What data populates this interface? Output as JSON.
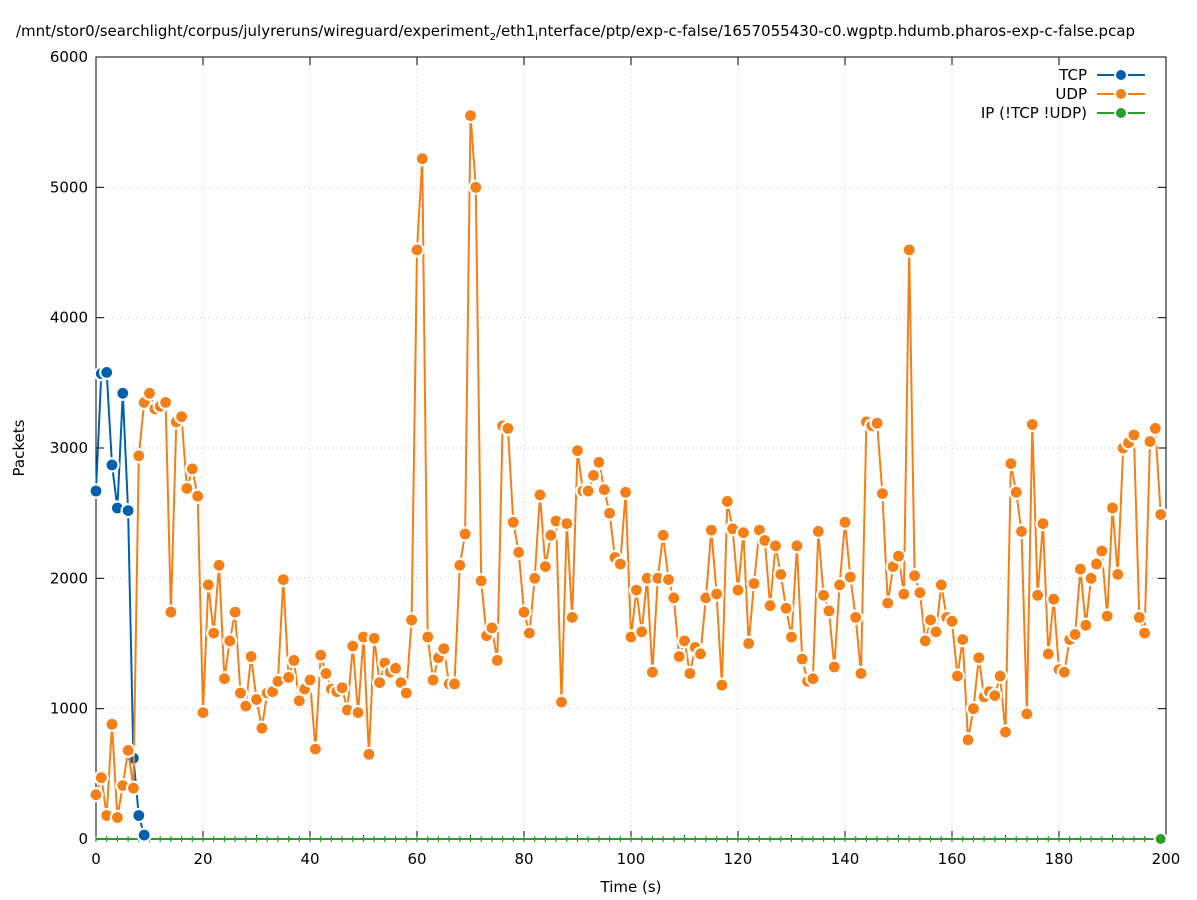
{
  "chart_data": {
    "type": "line",
    "title": "/mnt/stor0/searchlight/corpus/julyreruns/wireguard/experiment",
    "title_sub1": "2",
    "title_mid": "/eth1",
    "title_sub2": "i",
    "title_end": "nterface/ptp/exp-c-false/1657055430-c0.wgptp.hdumb.pharos-exp-c-false.pcap",
    "xlabel": "Time (s)",
    "ylabel": "Packets",
    "xlim": [
      0,
      200
    ],
    "ylim": [
      0,
      6000
    ],
    "xticks": [
      "0",
      "20",
      "40",
      "60",
      "80",
      "100",
      "120",
      "140",
      "160",
      "180",
      "200"
    ],
    "yticks": [
      "0",
      "1000",
      "2000",
      "3000",
      "4000",
      "5000",
      "6000"
    ],
    "grid": true,
    "legend_position": "top-right",
    "series": [
      {
        "name": "TCP",
        "color": "#0060ad",
        "points": [
          [
            0,
            2670
          ],
          [
            1,
            3570
          ],
          [
            2,
            3580
          ],
          [
            3,
            2870
          ],
          [
            4,
            2540
          ],
          [
            5,
            3420
          ],
          [
            6,
            2520
          ],
          [
            7,
            620
          ],
          [
            8,
            180
          ],
          [
            9,
            30
          ],
          [
            10,
            0
          ]
        ]
      },
      {
        "name": "UDP",
        "color": "#f57f17",
        "points": [
          [
            0,
            340
          ],
          [
            1,
            470
          ],
          [
            2,
            180
          ],
          [
            3,
            880
          ],
          [
            4,
            165
          ],
          [
            5,
            410
          ],
          [
            6,
            680
          ],
          [
            7,
            390
          ],
          [
            8,
            2940
          ],
          [
            9,
            3350
          ],
          [
            10,
            3420
          ],
          [
            11,
            3300
          ],
          [
            12,
            3320
          ],
          [
            13,
            3350
          ],
          [
            14,
            1740
          ],
          [
            15,
            3200
          ],
          [
            16,
            3240
          ],
          [
            17,
            2690
          ],
          [
            18,
            2840
          ],
          [
            19,
            2630
          ],
          [
            20,
            970
          ],
          [
            21,
            1950
          ],
          [
            22,
            1580
          ],
          [
            23,
            2100
          ],
          [
            24,
            1230
          ],
          [
            25,
            1520
          ],
          [
            26,
            1740
          ],
          [
            27,
            1120
          ],
          [
            28,
            1020
          ],
          [
            29,
            1400
          ],
          [
            30,
            1070
          ],
          [
            31,
            850
          ],
          [
            32,
            1120
          ],
          [
            33,
            1130
          ],
          [
            34,
            1210
          ],
          [
            35,
            1990
          ],
          [
            36,
            1240
          ],
          [
            37,
            1370
          ],
          [
            38,
            1060
          ],
          [
            39,
            1150
          ],
          [
            40,
            1220
          ],
          [
            41,
            690
          ],
          [
            42,
            1410
          ],
          [
            43,
            1270
          ],
          [
            44,
            1150
          ],
          [
            45,
            1130
          ],
          [
            46,
            1160
          ],
          [
            47,
            990
          ],
          [
            48,
            1480
          ],
          [
            49,
            970
          ],
          [
            50,
            1550
          ],
          [
            51,
            650
          ],
          [
            52,
            1540
          ],
          [
            53,
            1200
          ],
          [
            54,
            1350
          ],
          [
            55,
            1280
          ],
          [
            56,
            1310
          ],
          [
            57,
            1200
          ],
          [
            58,
            1120
          ],
          [
            59,
            1680
          ],
          [
            60,
            4520
          ],
          [
            61,
            5220
          ],
          [
            62,
            1550
          ],
          [
            63,
            1220
          ],
          [
            64,
            1390
          ],
          [
            65,
            1460
          ],
          [
            66,
            1190
          ],
          [
            67,
            1190
          ],
          [
            68,
            2100
          ],
          [
            69,
            2340
          ],
          [
            70,
            5550
          ],
          [
            71,
            5000
          ],
          [
            72,
            1980
          ],
          [
            73,
            1560
          ],
          [
            74,
            1620
          ],
          [
            75,
            1370
          ],
          [
            76,
            3170
          ],
          [
            77,
            3150
          ],
          [
            78,
            2430
          ],
          [
            79,
            2200
          ],
          [
            80,
            1740
          ],
          [
            81,
            1580
          ],
          [
            82,
            2000
          ],
          [
            83,
            2640
          ],
          [
            84,
            2090
          ],
          [
            85,
            2330
          ],
          [
            86,
            2440
          ],
          [
            87,
            1050
          ],
          [
            88,
            2420
          ],
          [
            89,
            1700
          ],
          [
            90,
            2980
          ],
          [
            91,
            2670
          ],
          [
            92,
            2670
          ],
          [
            93,
            2790
          ],
          [
            94,
            2890
          ],
          [
            95,
            2680
          ],
          [
            96,
            2500
          ],
          [
            97,
            2160
          ],
          [
            98,
            2110
          ],
          [
            99,
            2660
          ],
          [
            100,
            1550
          ],
          [
            101,
            1910
          ],
          [
            102,
            1590
          ],
          [
            103,
            2000
          ],
          [
            104,
            1280
          ],
          [
            105,
            2000
          ],
          [
            106,
            2330
          ],
          [
            107,
            1990
          ],
          [
            108,
            1850
          ],
          [
            109,
            1400
          ],
          [
            110,
            1520
          ],
          [
            111,
            1270
          ],
          [
            112,
            1470
          ],
          [
            113,
            1420
          ],
          [
            114,
            1850
          ],
          [
            115,
            2370
          ],
          [
            116,
            1880
          ],
          [
            117,
            1180
          ],
          [
            118,
            2590
          ],
          [
            119,
            2380
          ],
          [
            120,
            1910
          ],
          [
            121,
            2350
          ],
          [
            122,
            1500
          ],
          [
            123,
            1960
          ],
          [
            124,
            2370
          ],
          [
            125,
            2290
          ],
          [
            126,
            1790
          ],
          [
            127,
            2250
          ],
          [
            128,
            2030
          ],
          [
            129,
            1770
          ],
          [
            130,
            1550
          ],
          [
            131,
            2250
          ],
          [
            132,
            1380
          ],
          [
            133,
            1210
          ],
          [
            134,
            1230
          ],
          [
            135,
            2360
          ],
          [
            136,
            1870
          ],
          [
            137,
            1750
          ],
          [
            138,
            1320
          ],
          [
            139,
            1950
          ],
          [
            140,
            2430
          ],
          [
            141,
            2010
          ],
          [
            142,
            1700
          ],
          [
            143,
            1270
          ],
          [
            144,
            3200
          ],
          [
            145,
            3170
          ],
          [
            146,
            3190
          ],
          [
            147,
            2650
          ],
          [
            148,
            1810
          ],
          [
            149,
            2090
          ],
          [
            150,
            2170
          ],
          [
            151,
            1880
          ],
          [
            152,
            4520
          ],
          [
            153,
            2020
          ],
          [
            154,
            1890
          ],
          [
            155,
            1520
          ],
          [
            156,
            1680
          ],
          [
            157,
            1590
          ],
          [
            158,
            1950
          ],
          [
            159,
            1700
          ],
          [
            160,
            1670
          ],
          [
            161,
            1250
          ],
          [
            162,
            1530
          ],
          [
            163,
            760
          ],
          [
            164,
            1000
          ],
          [
            165,
            1390
          ],
          [
            166,
            1090
          ],
          [
            167,
            1130
          ],
          [
            168,
            1100
          ],
          [
            169,
            1250
          ],
          [
            170,
            820
          ],
          [
            171,
            2880
          ],
          [
            172,
            2660
          ],
          [
            173,
            2360
          ],
          [
            174,
            960
          ],
          [
            175,
            3180
          ],
          [
            176,
            1870
          ],
          [
            177,
            2420
          ],
          [
            178,
            1420
          ],
          [
            179,
            1840
          ],
          [
            180,
            1300
          ],
          [
            181,
            1280
          ],
          [
            182,
            1530
          ],
          [
            183,
            1570
          ],
          [
            184,
            2070
          ],
          [
            185,
            1640
          ],
          [
            186,
            2000
          ],
          [
            187,
            2110
          ],
          [
            188,
            2210
          ],
          [
            189,
            1710
          ],
          [
            190,
            2540
          ],
          [
            191,
            2030
          ],
          [
            192,
            3000
          ],
          [
            193,
            3040
          ],
          [
            194,
            3100
          ],
          [
            195,
            1700
          ],
          [
            196,
            1580
          ],
          [
            197,
            3050
          ],
          [
            198,
            3150
          ],
          [
            199,
            2490
          ]
        ]
      },
      {
        "name": "IP (!TCP  !UDP)",
        "color": "#2a9c2a",
        "points": [
          [
            0,
            0
          ],
          [
            199,
            0
          ]
        ]
      }
    ]
  }
}
